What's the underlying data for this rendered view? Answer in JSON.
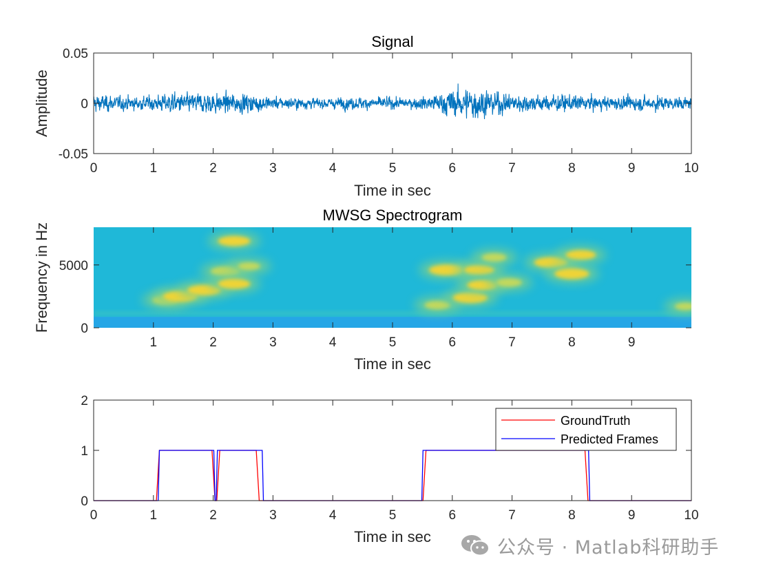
{
  "colors": {
    "signal": "#0072BD",
    "groundtruth": "#FF0000",
    "predicted": "#0000FF",
    "axis": "#262626"
  },
  "chart_data": [
    {
      "type": "line",
      "title": "Signal",
      "xlabel": "Time in sec",
      "ylabel": "Amplitude",
      "xlim": [
        0,
        10
      ],
      "ylim": [
        -0.05,
        0.05
      ],
      "xticks": [
        "0",
        "1",
        "2",
        "3",
        "4",
        "5",
        "6",
        "7",
        "8",
        "9",
        "10"
      ],
      "yticks": [
        "-0.05",
        "0",
        "0.05"
      ],
      "series": [
        {
          "envelope_t": [
            0,
            0.3,
            0.6,
            1.0,
            1.3,
            1.6,
            1.9,
            2.2,
            2.5,
            2.8,
            3.0,
            3.4,
            3.8,
            4.2,
            4.6,
            5.0,
            5.3,
            5.6,
            5.9,
            6.1,
            6.4,
            6.7,
            7.0,
            7.4,
            7.8,
            8.2,
            8.6,
            9.0,
            9.4,
            9.8,
            10
          ],
          "envelope_amp": [
            0.011,
            0.009,
            0.008,
            0.009,
            0.012,
            0.011,
            0.013,
            0.011,
            0.012,
            0.01,
            0.007,
            0.007,
            0.006,
            0.007,
            0.007,
            0.007,
            0.006,
            0.009,
            0.014,
            0.018,
            0.019,
            0.014,
            0.011,
            0.01,
            0.01,
            0.009,
            0.008,
            0.008,
            0.009,
            0.007,
            0.007
          ]
        }
      ]
    },
    {
      "type": "heatmap",
      "title": "MWSG Spectrogram",
      "xlabel": "Time in sec",
      "ylabel": "Frequency in Hz",
      "xlim": [
        0,
        10
      ],
      "ylim": [
        0,
        8000
      ],
      "xticks": [
        "1",
        "2",
        "3",
        "4",
        "5",
        "6",
        "7",
        "8",
        "9"
      ],
      "yticks": [
        "0",
        "5000"
      ],
      "background": "#1FB8D8",
      "blobs": [
        {
          "t": 1.2,
          "f": 2200,
          "level": 0.55
        },
        {
          "t": 1.45,
          "f": 2500,
          "level": 0.95
        },
        {
          "t": 1.85,
          "f": 3000,
          "level": 0.9
        },
        {
          "t": 2.35,
          "f": 6900,
          "level": 0.85
        },
        {
          "t": 2.2,
          "f": 4500,
          "level": 0.7
        },
        {
          "t": 2.35,
          "f": 3500,
          "level": 0.85
        },
        {
          "t": 2.6,
          "f": 4900,
          "level": 0.4
        },
        {
          "t": 5.9,
          "f": 4600,
          "level": 0.95
        },
        {
          "t": 6.45,
          "f": 4600,
          "level": 0.75
        },
        {
          "t": 6.7,
          "f": 5600,
          "level": 0.5
        },
        {
          "t": 5.75,
          "f": 1800,
          "level": 0.55
        },
        {
          "t": 6.3,
          "f": 2400,
          "level": 0.95
        },
        {
          "t": 6.5,
          "f": 3400,
          "level": 0.75
        },
        {
          "t": 6.95,
          "f": 3600,
          "level": 0.55
        },
        {
          "t": 7.65,
          "f": 5200,
          "level": 0.9
        },
        {
          "t": 8.15,
          "f": 5800,
          "level": 0.75
        },
        {
          "t": 8.0,
          "f": 4300,
          "level": 0.95
        },
        {
          "t": 9.9,
          "f": 1700,
          "level": 0.35
        }
      ]
    },
    {
      "type": "line",
      "xlabel": "Time in sec",
      "xlim": [
        0,
        10
      ],
      "ylim": [
        0,
        2
      ],
      "xticks": [
        "0",
        "1",
        "2",
        "3",
        "4",
        "5",
        "6",
        "7",
        "8",
        "9",
        "10"
      ],
      "yticks": [
        "0",
        "1",
        "2"
      ],
      "legend_position": "top-right",
      "series": [
        {
          "name": "GroundTruth",
          "x": [
            0,
            1.05,
            1.1,
            1.98,
            2.03,
            2.06,
            2.11,
            2.72,
            2.77,
            5.51,
            5.56,
            8.22,
            8.27,
            10
          ],
          "y": [
            0,
            0,
            1,
            1,
            0,
            0,
            1,
            1,
            0,
            0,
            1,
            1,
            0,
            0
          ]
        },
        {
          "name": "Predicted Frames",
          "x": [
            0,
            1.08,
            1.1,
            2.01,
            2.03,
            2.05,
            2.07,
            2.82,
            2.84,
            5.49,
            5.51,
            8.28,
            8.3,
            10
          ],
          "y": [
            0,
            0,
            1,
            1,
            0,
            0,
            1,
            1,
            0,
            0,
            1,
            1,
            0,
            0
          ]
        }
      ]
    }
  ],
  "watermark": {
    "text": "公众号 · Matlab科研助手",
    "icon": "wechat-icon"
  }
}
